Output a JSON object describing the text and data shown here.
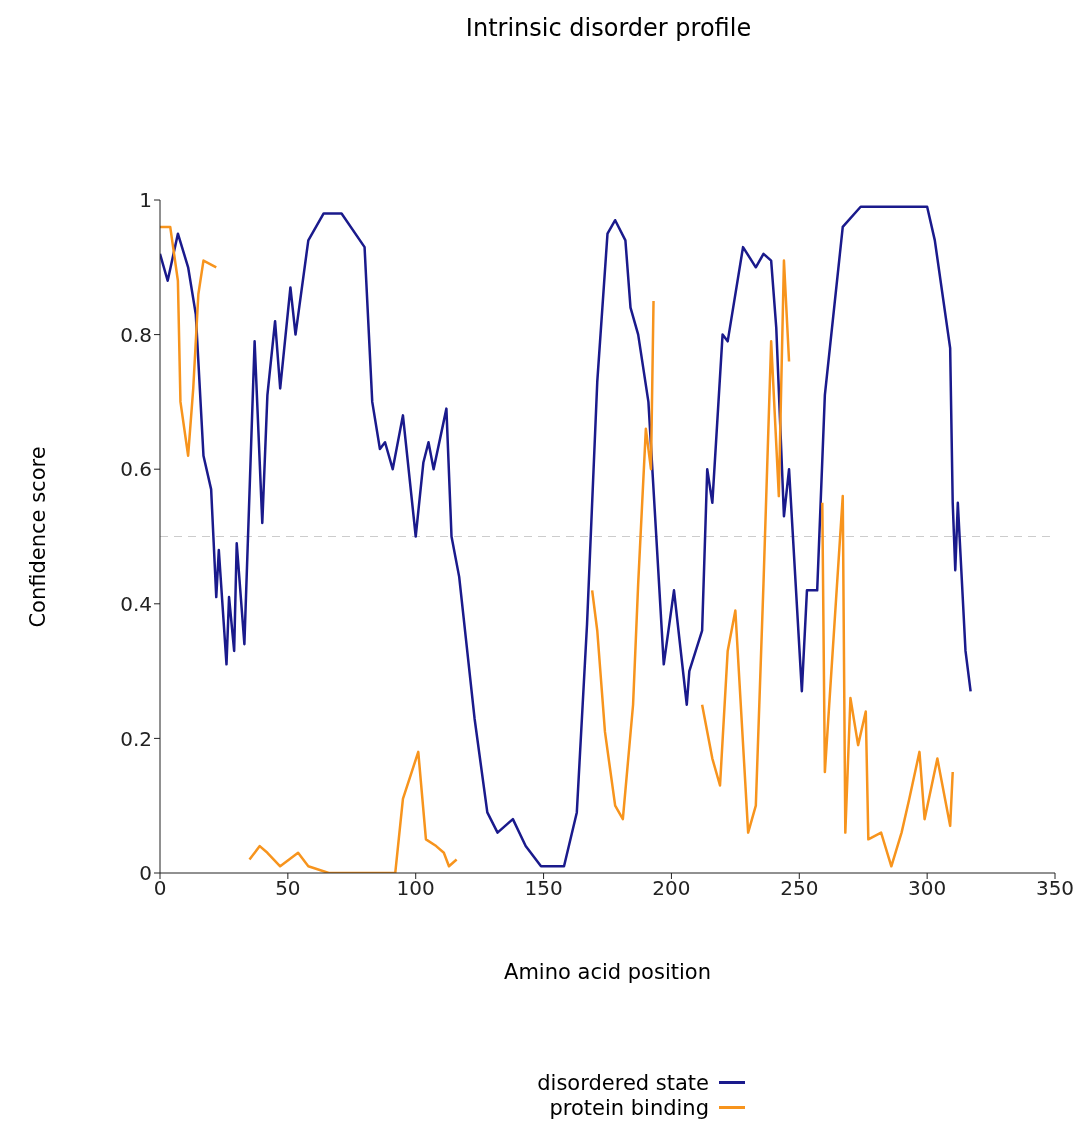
{
  "chart_data": {
    "type": "line",
    "title": "Intrinsic disorder profile",
    "xlabel": "Amino acid position",
    "ylabel": "Confidence score",
    "xlim": [
      0,
      350
    ],
    "xticks": [
      0,
      50,
      100,
      150,
      200,
      250,
      300,
      350
    ],
    "ylim": [
      0,
      1
    ],
    "yticks": [
      0,
      0.2,
      0.4,
      0.6,
      0.8,
      1
    ],
    "legend": "bottom",
    "line_style": "solid",
    "marker": "none",
    "ref_lines": [
      {
        "axis": "y",
        "value": 0.5,
        "color": "#cccccc",
        "line_style": "dashed"
      }
    ],
    "series": [
      {
        "name": "disordered state",
        "color": "#1a1a8c",
        "x": [
          0,
          3,
          7,
          11,
          14,
          17,
          20,
          22,
          23,
          26,
          27,
          29,
          30,
          33,
          37,
          40,
          42,
          45,
          47,
          51,
          53,
          58,
          64,
          71,
          80,
          83,
          86,
          88,
          91,
          95,
          100,
          103,
          105,
          107,
          112,
          114,
          117,
          123,
          128,
          132,
          138,
          143,
          149,
          158,
          163,
          167,
          171,
          175,
          178,
          182,
          184,
          187,
          191,
          197,
          201,
          206,
          207,
          212,
          214,
          216,
          220,
          222,
          228,
          233,
          236,
          239,
          241,
          244,
          246,
          251,
          253,
          257,
          260,
          267,
          274,
          300,
          303,
          309,
          310,
          311,
          312,
          315,
          317
        ],
        "values": [
          0.92,
          0.88,
          0.95,
          0.9,
          0.83,
          0.62,
          0.57,
          0.41,
          0.48,
          0.31,
          0.41,
          0.33,
          0.49,
          0.34,
          0.79,
          0.52,
          0.71,
          0.82,
          0.72,
          0.87,
          0.8,
          0.94,
          0.98,
          0.98,
          0.93,
          0.7,
          0.63,
          0.64,
          0.6,
          0.68,
          0.5,
          0.61,
          0.64,
          0.6,
          0.69,
          0.5,
          0.44,
          0.23,
          0.09,
          0.06,
          0.08,
          0.04,
          0.01,
          0.01,
          0.09,
          0.37,
          0.73,
          0.95,
          0.97,
          0.94,
          0.84,
          0.8,
          0.7,
          0.31,
          0.42,
          0.25,
          0.3,
          0.36,
          0.6,
          0.55,
          0.8,
          0.79,
          0.93,
          0.9,
          0.92,
          0.91,
          0.81,
          0.53,
          0.6,
          0.27,
          0.42,
          0.42,
          0.71,
          0.96,
          0.99,
          0.99,
          0.94,
          0.78,
          0.55,
          0.45,
          0.55,
          0.33,
          0.27
        ]
      },
      {
        "name": "protein binding",
        "color": "#f7941d",
        "x": [
          0,
          4,
          7,
          8,
          11,
          13,
          15,
          17,
          22,
          28,
          35,
          39,
          42,
          47,
          54,
          58,
          66,
          92,
          95,
          101,
          104,
          108,
          111,
          113,
          116,
          140,
          169,
          171,
          174,
          178,
          181,
          185,
          187,
          190,
          192,
          193,
          200,
          212,
          216,
          219,
          222,
          225,
          230,
          233,
          236,
          239,
          242,
          244,
          246,
          252,
          259,
          260,
          267,
          268,
          270,
          273,
          276,
          277,
          282,
          286,
          290,
          293,
          297,
          299,
          304,
          307,
          309,
          310
        ],
        "values": [
          0.96,
          0.96,
          0.88,
          0.7,
          0.62,
          0.72,
          0.86,
          0.91,
          0.9,
          null,
          0.02,
          0.04,
          0.03,
          0.01,
          0.03,
          0.01,
          0,
          0,
          0.11,
          0.18,
          0.05,
          0.04,
          0.03,
          0.01,
          0.02,
          null,
          0.42,
          0.36,
          0.21,
          0.1,
          0.08,
          0.25,
          0.43,
          0.66,
          0.6,
          0.85,
          null,
          0.25,
          0.17,
          0.13,
          0.33,
          0.39,
          0.06,
          0.1,
          0.43,
          0.79,
          0.56,
          0.91,
          0.76,
          null,
          0.55,
          0.15,
          0.56,
          0.06,
          0.26,
          0.19,
          0.24,
          0.05,
          0.06,
          0.01,
          0.06,
          0.11,
          0.18,
          0.08,
          0.17,
          0.11,
          0.07,
          0.15
        ]
      }
    ]
  }
}
